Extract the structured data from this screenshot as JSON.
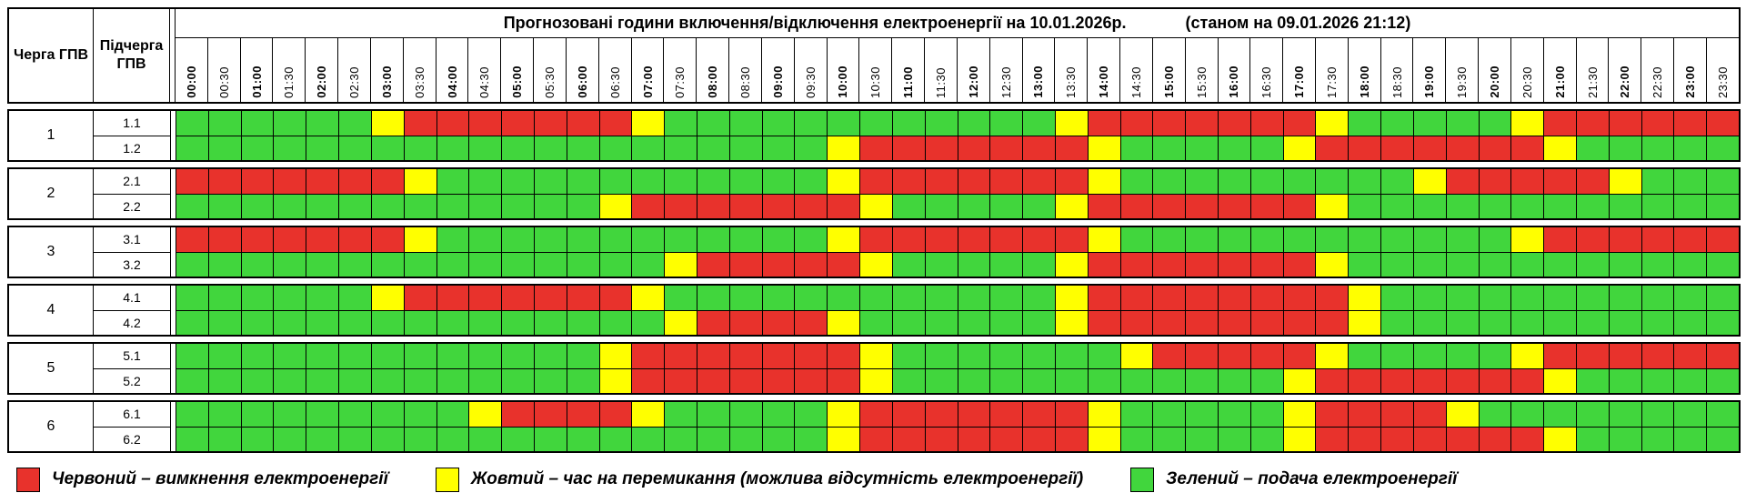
{
  "title": {
    "main": "Прогнозовані години включення/відключення електроенергії на 10.01.2026р.",
    "as_of": "(станом на 09.01.2026 21:12)"
  },
  "header": {
    "queue_col": "Черга ГПВ",
    "subqueue_col": "Підчерга ГПВ"
  },
  "colors": {
    "red": "#E8322C",
    "yellow": "#FFFF00",
    "green": "#41D63D"
  },
  "chart_data": {
    "type": "heatmap",
    "title": "Прогнозовані години включення/відключення електроенергії на 10.01.2026р. (станом на 09.01.2026 21:12)",
    "x_labels": [
      "00:00",
      "00:30",
      "01:00",
      "01:30",
      "02:00",
      "02:30",
      "03:00",
      "03:30",
      "04:00",
      "04:30",
      "05:00",
      "05:30",
      "06:00",
      "06:30",
      "07:00",
      "07:30",
      "08:00",
      "08:30",
      "09:00",
      "09:30",
      "10:00",
      "10:30",
      "11:00",
      "11:30",
      "12:00",
      "12:30",
      "13:00",
      "13:30",
      "14:00",
      "14:30",
      "15:00",
      "15:30",
      "16:00",
      "16:30",
      "17:00",
      "17:30",
      "18:00",
      "18:30",
      "19:00",
      "19:30",
      "20:00",
      "20:30",
      "21:00",
      "21:30",
      "22:00",
      "22:30",
      "23:00",
      "23:30"
    ],
    "cell_states": {
      "G": "green — подача електроенергії",
      "Y": "yellow — час на перемикання",
      "R": "red — вимкнення електроенергії"
    },
    "rows": [
      {
        "queue": "1",
        "subqueue": "1.1",
        "slots": "GGGGGGYRRRRRRRYGGGGGGGGGGGGYRRRRRRRYGGGGGYRRRRRR"
      },
      {
        "queue": "1",
        "subqueue": "1.2",
        "slots": "GGGGGGGGGGGGGGGGGGGGYRRRRRRRYGGGGGYRRRRRRRYGGGGG"
      },
      {
        "queue": "2",
        "subqueue": "2.1",
        "slots": "RRRRRRRYGGGGGGGGGGGGYRRRRRRRYGGGGGGGGGYRRRRRYGGG"
      },
      {
        "queue": "2",
        "subqueue": "2.2",
        "slots": "GGGGGGGGGGGGGYRRRRRRRYGGGGGYRRRRRRRYGGGGGGGGGGGG"
      },
      {
        "queue": "3",
        "subqueue": "3.1",
        "slots": "RRRRRRRYGGGGGGGGGGGGYRRRRRRRYGGGGGGGGGGGGYRRRRRR"
      },
      {
        "queue": "3",
        "subqueue": "3.2",
        "slots": "GGGGGGGGGGGGGGGYRRRRRYGGGGGYRRRRRRRYGGGGGGGGGGGG"
      },
      {
        "queue": "4",
        "subqueue": "4.1",
        "slots": "GGGGGGYRRRRRRRYGGGGGGGGGGGGYRRRRRRRRYGGGGGGGGGGG"
      },
      {
        "queue": "4",
        "subqueue": "4.2",
        "slots": "GGGGGGGGGGGGGGGYRRRRYGGGGGGYRRRRRRRRYGGGGGGGGGGG"
      },
      {
        "queue": "5",
        "subqueue": "5.1",
        "slots": "GGGGGGGGGGGGGYRRRRRRRYGGGGGGGYRRRRRYGGGGGYRRRRRR"
      },
      {
        "queue": "5",
        "subqueue": "5.2",
        "slots": "GGGGGGGGGGGGGYRRRRRRRYGGGGGGGGGGGGYRRRRRRRYGGGGG"
      },
      {
        "queue": "6",
        "subqueue": "6.1",
        "slots": "GGGGGGGGGYRRRRYGGGGGYRRRRRRRYGGGGGYRRRRYGGGGGGGG"
      },
      {
        "queue": "6",
        "subqueue": "6.2",
        "slots": "GGGGGGGGGGGGGGGGGGGGYRRRRRRRYGGGGGYRRRRRRRYGGGGG"
      }
    ],
    "legend_position": "bottom"
  },
  "legend": [
    {
      "color_key": "red",
      "label": "Червоний – вимкнення електроенергії"
    },
    {
      "color_key": "yellow",
      "label": "Жовтий – час на перемикання (можлива відсутність електроенергії)"
    },
    {
      "color_key": "green",
      "label": "Зелений – подача електроенергії"
    }
  ]
}
